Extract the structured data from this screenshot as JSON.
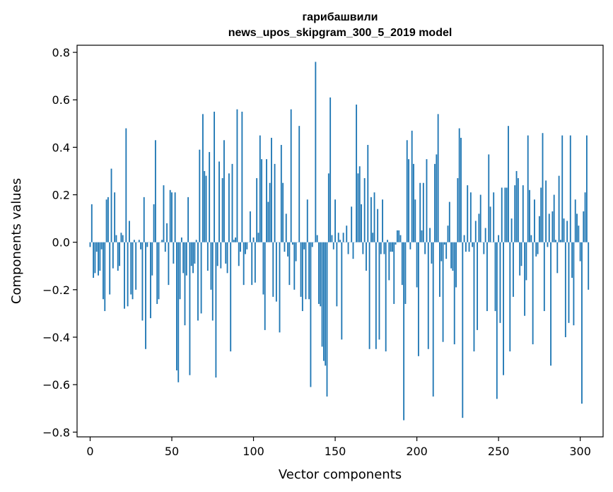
{
  "chart_data": {
    "type": "bar",
    "title": [
      "гарибашвили",
      "news_upos_skipgram_300_5_2019 model"
    ],
    "xlabel": "Vector components",
    "ylabel": "Components values",
    "xlim": [
      -8,
      314
    ],
    "ylim": [
      -0.82,
      0.83
    ],
    "xticks": [
      0,
      50,
      100,
      150,
      200,
      250,
      300
    ],
    "xtick_labels": [
      "0",
      "50",
      "100",
      "150",
      "200",
      "250",
      "300"
    ],
    "yticks": [
      -0.8,
      -0.6,
      -0.4,
      -0.2,
      0.0,
      0.2,
      0.4,
      0.6,
      0.8
    ],
    "ytick_labels": [
      "−0.8",
      "−0.6",
      "−0.4",
      "−0.2",
      "0.0",
      "0.2",
      "0.4",
      "0.6",
      "0.8"
    ],
    "grid": false,
    "bar_color": "#1f77b4",
    "values": [
      -0.02,
      0.16,
      -0.15,
      -0.13,
      -0.04,
      -0.14,
      -0.12,
      -0.03,
      -0.24,
      -0.29,
      0.18,
      0.19,
      -0.22,
      0.31,
      -0.11,
      0.21,
      0.03,
      -0.12,
      -0.1,
      0.04,
      0.03,
      -0.28,
      0.48,
      -0.27,
      0.09,
      -0.22,
      -0.24,
      0.01,
      -0.2,
      0.0,
      0.01,
      -0.03,
      -0.33,
      0.19,
      -0.45,
      -0.02,
      0.0,
      -0.32,
      -0.14,
      0.16,
      0.43,
      -0.26,
      -0.24,
      0.0,
      0.01,
      0.24,
      -0.04,
      0.08,
      -0.18,
      0.22,
      0.21,
      -0.09,
      0.21,
      -0.54,
      -0.59,
      -0.24,
      0.02,
      -0.13,
      -0.35,
      -0.14,
      0.19,
      -0.56,
      -0.1,
      -0.13,
      -0.09,
      0.01,
      -0.33,
      0.39,
      -0.3,
      0.54,
      0.3,
      0.28,
      -0.12,
      0.38,
      -0.2,
      -0.33,
      0.55,
      -0.57,
      -0.1,
      0.34,
      -0.11,
      0.27,
      0.43,
      -0.09,
      -0.13,
      0.29,
      -0.46,
      0.33,
      0.01,
      0.02,
      0.56,
      -0.1,
      -0.04,
      0.55,
      -0.18,
      -0.05,
      -0.03,
      0.0,
      0.13,
      -0.18,
      0.02,
      -0.17,
      0.27,
      0.04,
      0.45,
      0.35,
      -0.22,
      -0.37,
      0.35,
      0.17,
      0.25,
      0.44,
      -0.23,
      0.33,
      -0.25,
      0.0,
      -0.38,
      0.41,
      0.25,
      -0.04,
      0.12,
      -0.06,
      -0.18,
      0.56,
      -0.01,
      -0.2,
      -0.08,
      0.0,
      0.49,
      -0.23,
      -0.29,
      -0.03,
      -0.24,
      0.18,
      -0.24,
      -0.61,
      -0.02,
      0.0,
      0.76,
      0.03,
      -0.26,
      -0.27,
      -0.44,
      -0.5,
      -0.52,
      -0.65,
      0.29,
      0.61,
      0.03,
      -0.03,
      0.18,
      -0.27,
      0.04,
      0.01,
      -0.41,
      0.04,
      0.0,
      0.07,
      -0.05,
      0.0,
      0.15,
      -0.07,
      0.0,
      0.58,
      0.29,
      0.32,
      0.16,
      -0.05,
      0.27,
      -0.12,
      0.41,
      -0.45,
      0.19,
      0.04,
      0.21,
      -0.45,
      0.14,
      -0.41,
      -0.05,
      0.18,
      -0.05,
      -0.46,
      0.01,
      -0.16,
      -0.04,
      -0.04,
      -0.26,
      -0.01,
      0.05,
      0.05,
      0.03,
      -0.18,
      -0.75,
      -0.26,
      0.43,
      0.35,
      -0.03,
      0.47,
      0.33,
      0.18,
      -0.19,
      -0.48,
      0.25,
      0.05,
      0.25,
      -0.05,
      0.35,
      -0.45,
      0.06,
      -0.09,
      -0.65,
      0.33,
      0.37,
      0.54,
      -0.23,
      -0.08,
      -0.42,
      -0.01,
      -0.07,
      0.07,
      0.17,
      -0.11,
      -0.12,
      -0.43,
      -0.19,
      0.27,
      0.48,
      0.44,
      -0.74,
      0.03,
      -0.04,
      0.24,
      -0.04,
      0.21,
      -0.02,
      -0.46,
      0.09,
      -0.37,
      0.12,
      0.2,
      0.0,
      -0.05,
      0.06,
      -0.29,
      0.37,
      0.15,
      0.0,
      0.21,
      -0.29,
      -0.66,
      0.03,
      -0.34,
      0.23,
      -0.56,
      0.23,
      0.23,
      0.49,
      -0.46,
      0.1,
      -0.23,
      0.24,
      0.3,
      0.27,
      -0.14,
      -0.1,
      0.24,
      -0.31,
      -0.16,
      0.45,
      0.22,
      0.03,
      -0.43,
      0.18,
      -0.06,
      -0.05,
      0.11,
      0.23,
      0.46,
      -0.29,
      0.26,
      -0.02,
      0.12,
      -0.52,
      0.13,
      0.2,
      0.01,
      -0.13,
      0.28,
      0.01,
      0.45,
      0.1,
      -0.4,
      0.09,
      -0.34,
      0.45,
      -0.15,
      -0.35,
      0.18,
      0.12,
      0.07,
      -0.08,
      -0.68,
      0.13,
      0.21,
      0.45,
      -0.2
    ]
  }
}
